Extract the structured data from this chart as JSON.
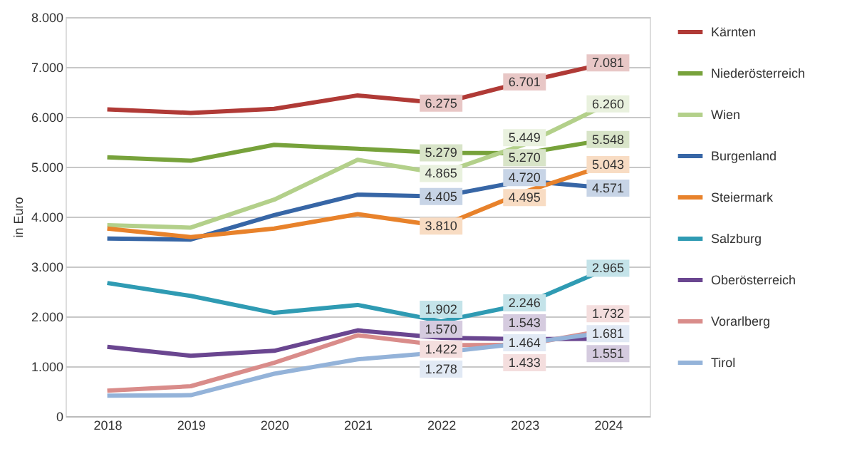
{
  "chart_data": {
    "type": "line",
    "ylabel": "in Euro",
    "categories": [
      "2018",
      "2019",
      "2020",
      "2021",
      "2022",
      "2023",
      "2024"
    ],
    "ylim": [
      0,
      8000
    ],
    "yticks": [
      {
        "value": 0,
        "label": "0"
      },
      {
        "value": 1000,
        "label": "1.000"
      },
      {
        "value": 2000,
        "label": "2.000"
      },
      {
        "value": 3000,
        "label": "3.000"
      },
      {
        "value": 4000,
        "label": "4.000"
      },
      {
        "value": 5000,
        "label": "5.000"
      },
      {
        "value": 6000,
        "label": "6.000"
      },
      {
        "value": 7000,
        "label": "7.000"
      },
      {
        "value": 8000,
        "label": "8.000"
      }
    ],
    "grid": "y",
    "legend": "right",
    "marker": "none",
    "line_style": "solid",
    "series": [
      {
        "name": "Kärnten",
        "color": "#b03a36",
        "values": [
          6150,
          6080,
          6160,
          6430,
          6275,
          6701,
          7081
        ],
        "value_labels": [
          null,
          null,
          null,
          null,
          "6.275",
          "6.701",
          "7.081"
        ]
      },
      {
        "name": "Niederösterreich",
        "color": "#77a23b",
        "values": [
          5190,
          5120,
          5440,
          5360,
          5279,
          5270,
          5548
        ],
        "value_labels": [
          null,
          null,
          null,
          null,
          "5.279",
          "5.270",
          "5.548"
        ]
      },
      {
        "name": "Wien",
        "color": "#b3d08a",
        "values": [
          3830,
          3780,
          4340,
          5140,
          4865,
          5449,
          6260
        ],
        "value_labels": [
          null,
          null,
          null,
          null,
          "4.865",
          "5.449",
          "6.260"
        ]
      },
      {
        "name": "Burgenland",
        "color": "#3766a6",
        "values": [
          3560,
          3540,
          4030,
          4440,
          4405,
          4720,
          4571
        ],
        "value_labels": [
          null,
          null,
          null,
          null,
          "4.405",
          "4.720",
          "4.571"
        ]
      },
      {
        "name": "Steiermark",
        "color": "#e8822b",
        "values": [
          3760,
          3590,
          3760,
          4050,
          3810,
          4495,
          5043
        ],
        "value_labels": [
          null,
          null,
          null,
          null,
          "3.810",
          "4.495",
          "5.043"
        ]
      },
      {
        "name": "Salzburg",
        "color": "#2f9bb3",
        "values": [
          2670,
          2410,
          2070,
          2230,
          1902,
          2246,
          2965
        ],
        "value_labels": [
          null,
          null,
          null,
          null,
          "1.902",
          "2.246",
          "2.965"
        ]
      },
      {
        "name": "Oberösterreich",
        "color": "#6a4690",
        "values": [
          1390,
          1210,
          1310,
          1720,
          1570,
          1543,
          1551
        ],
        "value_labels": [
          null,
          null,
          null,
          null,
          "1.570",
          "1.543",
          "1.551"
        ]
      },
      {
        "name": "Vorarlberg",
        "color": "#d98c8a",
        "values": [
          510,
          600,
          1070,
          1620,
          1422,
          1433,
          1732
        ],
        "value_labels": [
          null,
          null,
          null,
          null,
          "1.422",
          "1.433",
          "1.732"
        ]
      },
      {
        "name": "Tirol",
        "color": "#94b3d9",
        "values": [
          410,
          420,
          850,
          1140,
          1278,
          1464,
          1681
        ],
        "value_labels": [
          null,
          null,
          null,
          null,
          "1.278",
          "1.464",
          "1.681"
        ]
      }
    ]
  }
}
